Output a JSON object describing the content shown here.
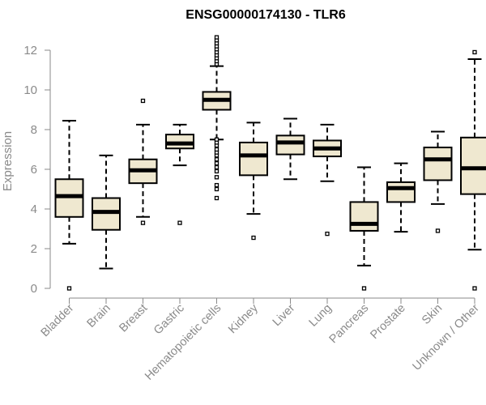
{
  "chart_data": {
    "type": "boxplot",
    "title": "ENSG00000174130 - TLR6",
    "xlabel": "",
    "ylabel": "Expression",
    "ylim": [
      0,
      12.5
    ],
    "yticks": [
      0,
      2,
      4,
      6,
      8,
      10,
      12
    ],
    "categories": [
      "Bladder",
      "Brain",
      "Breast",
      "Gastric",
      "Hematopoietic cells",
      "Kidney",
      "Liver",
      "Lung",
      "Pancreas",
      "Prostate",
      "Skin",
      "Unknown / Other"
    ],
    "box_fill": "#efe8d0",
    "box_stroke": "#000000",
    "median_color": "#000000",
    "boxes": [
      {
        "whislo": 2.25,
        "q1": 3.6,
        "med": 4.65,
        "q3": 5.5,
        "whishi": 8.45,
        "fliers": [
          0.0
        ]
      },
      {
        "whislo": 1.0,
        "q1": 2.95,
        "med": 3.85,
        "q3": 4.55,
        "whishi": 6.7,
        "fliers": []
      },
      {
        "whislo": 3.6,
        "q1": 5.3,
        "med": 5.95,
        "q3": 6.5,
        "whishi": 8.25,
        "fliers": [
          3.3,
          9.45
        ]
      },
      {
        "whislo": 6.2,
        "q1": 7.05,
        "med": 7.3,
        "q3": 7.75,
        "whishi": 8.25,
        "fliers": [
          3.3
        ]
      },
      {
        "whislo": 7.5,
        "q1": 9.0,
        "med": 9.5,
        "q3": 9.9,
        "whishi": 11.2,
        "fliers": [
          4.55,
          5.0,
          5.2,
          5.6,
          5.9,
          6.1,
          6.3,
          6.5,
          6.7,
          6.85,
          7.0,
          7.2,
          7.35,
          7.5,
          11.3,
          11.45,
          11.6,
          11.75,
          11.9,
          12.05,
          12.2,
          12.35,
          12.5,
          12.65
        ]
      },
      {
        "whislo": 3.75,
        "q1": 5.7,
        "med": 6.7,
        "q3": 7.35,
        "whishi": 8.35,
        "fliers": [
          2.55
        ]
      },
      {
        "whislo": 5.5,
        "q1": 6.75,
        "med": 7.35,
        "q3": 7.7,
        "whishi": 8.55,
        "fliers": []
      },
      {
        "whislo": 5.4,
        "q1": 6.65,
        "med": 7.05,
        "q3": 7.45,
        "whishi": 8.25,
        "fliers": [
          2.75
        ]
      },
      {
        "whislo": 1.15,
        "q1": 2.9,
        "med": 3.25,
        "q3": 4.35,
        "whishi": 6.1,
        "fliers": [
          0.0
        ]
      },
      {
        "whislo": 2.85,
        "q1": 4.35,
        "med": 5.05,
        "q3": 5.35,
        "whishi": 6.3,
        "fliers": []
      },
      {
        "whislo": 4.25,
        "q1": 5.45,
        "med": 6.5,
        "q3": 7.1,
        "whishi": 7.9,
        "fliers": [
          2.9
        ]
      },
      {
        "whislo": 1.95,
        "q1": 4.75,
        "med": 6.05,
        "q3": 7.6,
        "whishi": 11.55,
        "fliers": [
          0.0,
          11.9
        ]
      }
    ]
  }
}
